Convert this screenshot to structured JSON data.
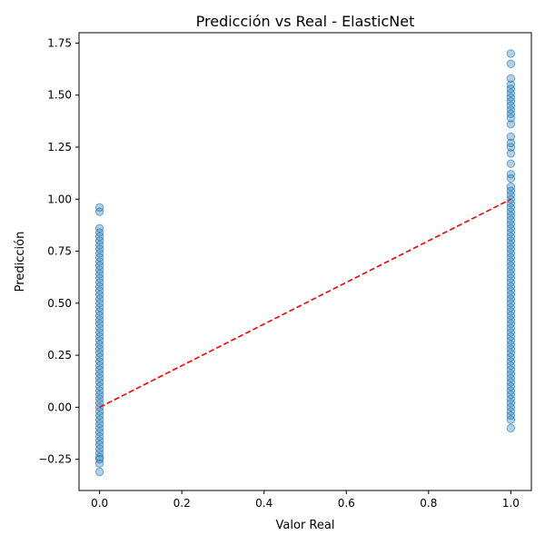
{
  "chart_data": {
    "type": "scatter",
    "title": "Predicción vs Real - ElasticNet",
    "xlabel": "Valor Real",
    "ylabel": "Predicción",
    "xlim": [
      -0.05,
      1.05
    ],
    "ylim": [
      -0.4,
      1.8
    ],
    "x_ticks": [
      0.0,
      0.2,
      0.4,
      0.6,
      0.8,
      1.0
    ],
    "x_tick_labels": [
      "0.0",
      "0.2",
      "0.4",
      "0.6",
      "0.8",
      "1.0"
    ],
    "y_ticks": [
      -0.25,
      0.0,
      0.25,
      0.5,
      0.75,
      1.0,
      1.25,
      1.5,
      1.75
    ],
    "y_tick_labels": [
      "−0.25",
      "0.00",
      "0.25",
      "0.50",
      "0.75",
      "1.00",
      "1.25",
      "1.50",
      "1.75"
    ],
    "grid": false,
    "point_color": "#1f77b4",
    "point_alpha": 0.35,
    "reference_line": {
      "from": [
        0,
        0
      ],
      "to": [
        1,
        1
      ],
      "color": "#ff0000",
      "style": "dashed"
    },
    "series": [
      {
        "x": 0,
        "y": [
          -0.31,
          -0.27,
          -0.25,
          -0.24,
          -0.22,
          -0.2,
          -0.18,
          -0.16,
          -0.14,
          -0.12,
          -0.1,
          -0.08,
          -0.06,
          -0.04,
          -0.02,
          0.0,
          0.02,
          0.04,
          0.06,
          0.08,
          0.1,
          0.12,
          0.14,
          0.16,
          0.18,
          0.2,
          0.22,
          0.24,
          0.26,
          0.28,
          0.3,
          0.32,
          0.34,
          0.36,
          0.38,
          0.4,
          0.42,
          0.44,
          0.46,
          0.48,
          0.5,
          0.52,
          0.54,
          0.56,
          0.58,
          0.6,
          0.62,
          0.64,
          0.66,
          0.68,
          0.7,
          0.72,
          0.74,
          0.76,
          0.78,
          0.8,
          0.82,
          0.84,
          0.86,
          0.94,
          0.96
        ]
      },
      {
        "x": 1,
        "y": [
          -0.1,
          -0.06,
          -0.04,
          -0.02,
          0.0,
          0.02,
          0.04,
          0.06,
          0.08,
          0.1,
          0.12,
          0.14,
          0.16,
          0.18,
          0.2,
          0.22,
          0.24,
          0.26,
          0.28,
          0.3,
          0.32,
          0.34,
          0.36,
          0.38,
          0.4,
          0.42,
          0.44,
          0.46,
          0.48,
          0.5,
          0.52,
          0.54,
          0.56,
          0.58,
          0.6,
          0.62,
          0.64,
          0.66,
          0.68,
          0.7,
          0.72,
          0.74,
          0.76,
          0.78,
          0.8,
          0.82,
          0.84,
          0.86,
          0.88,
          0.9,
          0.92,
          0.94,
          0.96,
          0.98,
          1.0,
          1.02,
          1.04,
          1.06,
          1.1,
          1.12,
          1.17,
          1.22,
          1.25,
          1.27,
          1.3,
          1.36,
          1.39,
          1.41,
          1.43,
          1.45,
          1.47,
          1.49,
          1.51,
          1.53,
          1.55,
          1.58,
          1.65,
          1.7
        ]
      }
    ]
  }
}
